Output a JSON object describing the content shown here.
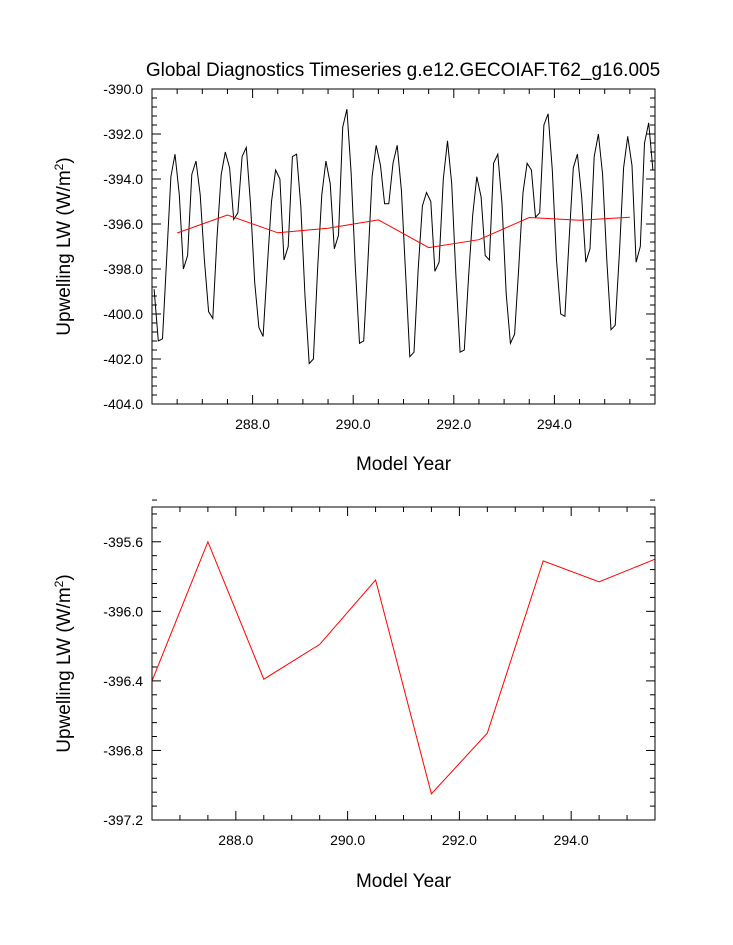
{
  "chart_data": [
    {
      "type": "line",
      "title": "Global Diagnostics Timeseries g.e12.GECOIAF.T62_g16.005",
      "xlabel": "Model Year",
      "ylabel": "Upwelling LW (W/m^2)",
      "xlim": [
        286.0,
        296.0
      ],
      "ylim": [
        -404.0,
        -390.0
      ],
      "xticks": [
        288.0,
        290.0,
        292.0,
        294.0
      ],
      "xtick_labels": [
        "288.0",
        "290.0",
        "292.0",
        "294.0"
      ],
      "yticks": [
        -390.0,
        -392.0,
        -394.0,
        -396.0,
        -398.0,
        -400.0,
        -402.0,
        -404.0
      ],
      "ytick_labels": [
        "-390.0",
        "-392.0",
        "-394.0",
        "-396.0",
        "-398.0",
        "-400.0",
        "-402.0",
        "-404.0"
      ],
      "grid": false,
      "series": [
        {
          "color": "#000000",
          "x": [
            286.042,
            286.125,
            286.208,
            286.292,
            286.375,
            286.458,
            286.542,
            286.625,
            286.708,
            286.792,
            286.875,
            286.958,
            287.042,
            287.125,
            287.208,
            287.292,
            287.375,
            287.458,
            287.542,
            287.625,
            287.708,
            287.792,
            287.875,
            287.958,
            288.042,
            288.125,
            288.208,
            288.292,
            288.375,
            288.458,
            288.542,
            288.625,
            288.708,
            288.792,
            288.875,
            288.958,
            289.042,
            289.125,
            289.208,
            289.292,
            289.375,
            289.458,
            289.542,
            289.625,
            289.708,
            289.792,
            289.875,
            289.958,
            290.042,
            290.125,
            290.208,
            290.292,
            290.375,
            290.458,
            290.542,
            290.625,
            290.708,
            290.792,
            290.875,
            290.958,
            291.042,
            291.125,
            291.208,
            291.292,
            291.375,
            291.458,
            291.542,
            291.625,
            291.708,
            291.792,
            291.875,
            291.958,
            292.042,
            292.125,
            292.208,
            292.292,
            292.375,
            292.458,
            292.542,
            292.625,
            292.708,
            292.792,
            292.875,
            292.958,
            293.042,
            293.125,
            293.208,
            293.292,
            293.375,
            293.458,
            293.542,
            293.625,
            293.708,
            293.792,
            293.875,
            293.958,
            294.042,
            294.125,
            294.208,
            294.292,
            294.375,
            294.458,
            294.542,
            294.625,
            294.708,
            294.792,
            294.875,
            294.958,
            295.042,
            295.125,
            295.208,
            295.292,
            295.375,
            295.458,
            295.542,
            295.625,
            295.708,
            295.792,
            295.875,
            295.958
          ],
          "values": [
            -398.9,
            -401.2,
            -401.1,
            -397.5,
            -393.9,
            -392.9,
            -394.7,
            -398.0,
            -397.4,
            -393.8,
            -393.2,
            -394.7,
            -397.6,
            -399.9,
            -400.2,
            -396.6,
            -393.8,
            -392.8,
            -393.5,
            -395.8,
            -395.5,
            -393.0,
            -392.6,
            -395.1,
            -398.6,
            -400.6,
            -401.0,
            -397.9,
            -395.0,
            -393.6,
            -394.0,
            -397.6,
            -397.0,
            -393.0,
            -392.9,
            -395.2,
            -399.2,
            -402.2,
            -402.0,
            -398.0,
            -394.7,
            -393.2,
            -394.2,
            -397.1,
            -396.5,
            -391.7,
            -390.9,
            -393.7,
            -397.9,
            -401.3,
            -401.2,
            -397.7,
            -393.9,
            -392.5,
            -393.4,
            -395.1,
            -395.1,
            -393.3,
            -392.5,
            -394.5,
            -398.2,
            -401.9,
            -401.7,
            -398.0,
            -395.2,
            -394.6,
            -395.0,
            -398.1,
            -397.7,
            -394.0,
            -392.3,
            -394.2,
            -398.3,
            -401.7,
            -401.6,
            -398.4,
            -395.6,
            -393.9,
            -394.8,
            -397.4,
            -397.6,
            -393.3,
            -392.9,
            -395.1,
            -399.1,
            -401.3,
            -400.9,
            -397.9,
            -394.6,
            -393.3,
            -393.6,
            -395.7,
            -395.5,
            -391.6,
            -391.1,
            -393.6,
            -397.6,
            -400.0,
            -400.1,
            -396.7,
            -393.5,
            -392.9,
            -394.8,
            -397.7,
            -397.1,
            -393.0,
            -392.0,
            -393.8,
            -397.6,
            -400.7,
            -400.5,
            -397.3,
            -393.5,
            -392.1,
            -393.4,
            -397.7,
            -397.0,
            -392.4,
            -391.5,
            -393.6
          ]
        },
        {
          "color": "#ff0000",
          "x": [
            286.5,
            287.5,
            288.5,
            289.5,
            290.5,
            291.5,
            292.5,
            293.5,
            294.5,
            295.5
          ],
          "values": [
            -396.4,
            -395.6,
            -396.39,
            -396.19,
            -395.82,
            -397.05,
            -396.7,
            -395.71,
            -395.83,
            -395.7
          ]
        }
      ]
    },
    {
      "type": "line",
      "title": "",
      "xlabel": "Model Year",
      "ylabel": "Upwelling LW (W/m^2)",
      "xlim": [
        286.5,
        295.5
      ],
      "ylim": [
        -397.2,
        -395.4
      ],
      "xticks": [
        288.0,
        290.0,
        292.0,
        294.0
      ],
      "xtick_labels": [
        "288.0",
        "290.0",
        "292.0",
        "294.0"
      ],
      "yticks": [
        -395.6,
        -396.0,
        -396.4,
        -396.8,
        -397.2
      ],
      "ytick_labels": [
        "-395.6",
        "-396.0",
        "-396.4",
        "-396.8",
        "-397.2"
      ],
      "grid": false,
      "series": [
        {
          "color": "#ff0000",
          "x": [
            286.5,
            287.5,
            288.5,
            289.5,
            290.5,
            291.5,
            292.5,
            293.5,
            294.5,
            295.5
          ],
          "values": [
            -396.4,
            -395.6,
            -396.39,
            -396.19,
            -395.82,
            -397.05,
            -396.7,
            -395.71,
            -395.83,
            -395.7
          ]
        }
      ]
    }
  ]
}
